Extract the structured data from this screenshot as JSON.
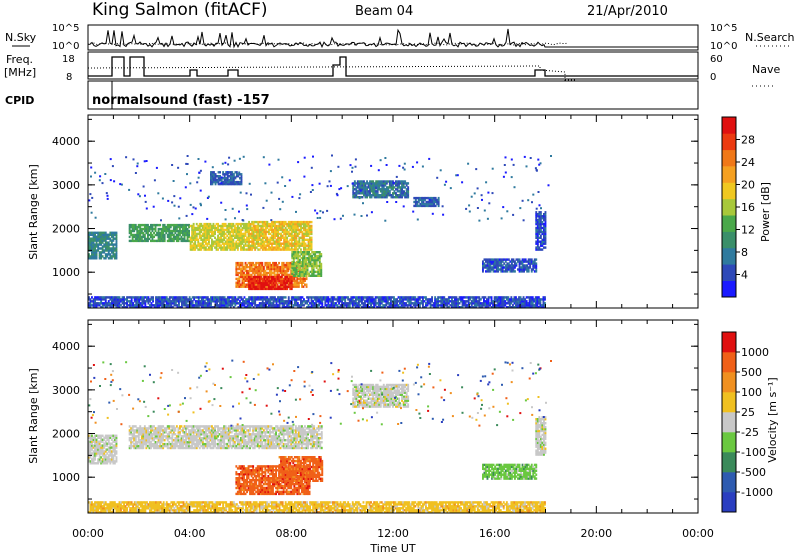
{
  "header": {
    "station": "King Salmon (fitACF)",
    "beam": "Beam 04",
    "date": "21/Apr/2010"
  },
  "params": {
    "nsky_label": "N.Sky",
    "nsky_tick_high": "10^5",
    "nsky_tick_low": "10^0",
    "nsearch_label": "N.Search",
    "nsearch_tick_high": "10^5",
    "nsearch_tick_low": "10^0",
    "freq_label": "Freq.",
    "freq_unit": "[MHz]",
    "freq_tick_high": "18",
    "freq_tick_low": "8",
    "nave_label": "Nave",
    "nave_tick_high": "60",
    "nave_tick_low": "0",
    "cpid_label": "CPID",
    "cpid_value": "normalsound (fast) -157"
  },
  "chart_data": [
    {
      "type": "heatmap",
      "name": "power",
      "xlabel": "Time UT",
      "ylabel": "Slant Range [km]",
      "xlim": [
        0,
        24
      ],
      "ylim": [
        180,
        4600
      ],
      "x_ticks": [
        "00:00",
        "04:00",
        "08:00",
        "12:00",
        "16:00",
        "20:00",
        "00:00"
      ],
      "y_ticks": [
        1000,
        2000,
        3000,
        4000
      ],
      "colorbar": {
        "label": "Power [dB]",
        "ticks": [
          "4",
          "8",
          "12",
          "16",
          "20",
          "24",
          "28"
        ],
        "colors": [
          "#1a1aff",
          "#2e49b8",
          "#2f7a9e",
          "#3a8f6a",
          "#4aa84a",
          "#a8c83a",
          "#f0c820",
          "#f5a020",
          "#f07818",
          "#ec3a10",
          "#e01010"
        ]
      },
      "regions": [
        {
          "t0": 0.0,
          "t1": 1.1,
          "r0": 1300,
          "r1": 1900,
          "level": 0.25
        },
        {
          "t0": 1.6,
          "t1": 4.0,
          "r0": 1700,
          "r1": 2100,
          "level": 0.35
        },
        {
          "t0": 4.0,
          "t1": 6.3,
          "r0": 1500,
          "r1": 2100,
          "level": 0.55
        },
        {
          "t0": 6.3,
          "t1": 8.8,
          "r0": 1500,
          "r1": 2150,
          "level": 0.6
        },
        {
          "t0": 5.8,
          "t1": 8.6,
          "r0": 650,
          "r1": 1200,
          "level": 0.8
        },
        {
          "t0": 6.3,
          "t1": 8.0,
          "r0": 600,
          "r1": 900,
          "level": 0.97
        },
        {
          "t0": 8.0,
          "t1": 9.2,
          "r0": 900,
          "r1": 1450,
          "level": 0.45
        },
        {
          "t0": 4.8,
          "t1": 6.0,
          "r0": 3000,
          "r1": 3300,
          "level": 0.15
        },
        {
          "t0": 10.4,
          "t1": 12.6,
          "r0": 2700,
          "r1": 3100,
          "level": 0.2
        },
        {
          "t0": 12.8,
          "t1": 13.8,
          "r0": 2500,
          "r1": 2700,
          "level": 0.15
        },
        {
          "t0": 15.5,
          "t1": 17.6,
          "r0": 1000,
          "r1": 1300,
          "level": 0.12
        },
        {
          "t0": 0.0,
          "t1": 18.0,
          "r0": 180,
          "r1": 450,
          "level": 0.1
        },
        {
          "t0": 17.6,
          "t1": 18.0,
          "r0": 1500,
          "r1": 2400,
          "level": 0.1
        }
      ]
    },
    {
      "type": "heatmap",
      "name": "velocity",
      "xlabel": "Time UT",
      "ylabel": "Slant Range [km]",
      "xlim": [
        0,
        24
      ],
      "ylim": [
        180,
        4600
      ],
      "x_ticks": [
        "00:00",
        "04:00",
        "08:00",
        "12:00",
        "16:00",
        "20:00",
        "00:00"
      ],
      "y_ticks": [
        1000,
        2000,
        3000,
        4000
      ],
      "colorbar": {
        "label": "Velocity [m s⁻¹]",
        "ticks": [
          "1000",
          "500",
          "100",
          "25",
          "-25",
          "-100",
          "-500",
          "-1000"
        ],
        "colors": [
          "#2a3ec0",
          "#2e5bb0",
          "#3a8a5a",
          "#6ac840",
          "#c8c8c8",
          "#f0c020",
          "#f09020",
          "#f06018",
          "#e01010"
        ]
      },
      "regions": [
        {
          "t0": 0.0,
          "t1": 1.1,
          "r0": 1300,
          "r1": 1950,
          "level": 4
        },
        {
          "t0": 1.6,
          "t1": 9.2,
          "r0": 1650,
          "r1": 2150,
          "level": 4
        },
        {
          "t0": 5.8,
          "t1": 8.7,
          "r0": 600,
          "r1": 1250,
          "level": 7
        },
        {
          "t0": 7.5,
          "t1": 9.2,
          "r0": 900,
          "r1": 1450,
          "level": 7
        },
        {
          "t0": 10.4,
          "t1": 12.6,
          "r0": 2600,
          "r1": 3100,
          "level": 4
        },
        {
          "t0": 15.5,
          "t1": 17.6,
          "r0": 950,
          "r1": 1300,
          "level": 3
        },
        {
          "t0": 0.0,
          "t1": 18.0,
          "r0": 180,
          "r1": 450,
          "level": 5
        },
        {
          "t0": 17.6,
          "t1": 18.0,
          "r0": 1500,
          "r1": 2400,
          "level": 4
        }
      ]
    }
  ]
}
